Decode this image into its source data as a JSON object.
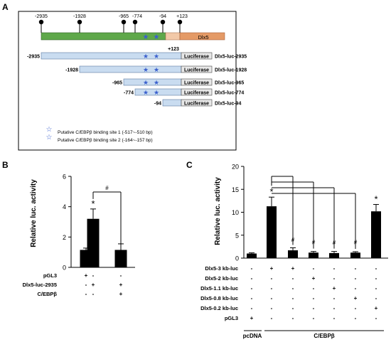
{
  "panel_a": {
    "label": "A",
    "promoter": {
      "positions": [
        "-2935",
        "-1928",
        "-965",
        "-774",
        "-94",
        "+123"
      ],
      "gene_label": "Dlx5",
      "colors": {
        "promoter": "#5fa84a",
        "exon": "#f2c9a8",
        "gene": "#e49a66"
      }
    },
    "tss_label": "+123",
    "constructs": [
      {
        "start": "-2935",
        "luc": "Luciferase",
        "name": "Dlx5-luc-2935",
        "sites": 2
      },
      {
        "start": "-1928",
        "luc": "Luciferase",
        "name": "Dlx5-luc-1928",
        "sites": 2
      },
      {
        "start": "-965",
        "luc": "Luciferase",
        "name": "Dlx5-luc-965",
        "sites": 2
      },
      {
        "start": "-774",
        "luc": "Luciferase",
        "name": "Dlx5-luc-774",
        "sites": 2
      },
      {
        "start": "-94",
        "luc": "Luciferase",
        "name": "Dlx5-luc-94",
        "sites": 0
      }
    ],
    "legend": [
      "Putative C/EBPβ binding site 1 (-517~-510 bp)",
      "Putative C/EBPβ binding site 2 (-164~-157 bp)"
    ],
    "colors": {
      "construct": "#c9dcf0",
      "star": "#3a5fcd"
    }
  },
  "panel_b": {
    "label": "B",
    "row_labels": [
      "pGL3",
      "Dlx5-luc-2935",
      "C/EBPβ"
    ],
    "rows": [
      [
        "+",
        "-",
        "-"
      ],
      [
        "-",
        "+",
        "+"
      ],
      [
        "-",
        "-",
        "+"
      ]
    ],
    "significance": [
      "",
      "*",
      ""
    ],
    "bracket_mark": "#"
  },
  "panel_c": {
    "label": "C",
    "row_labels": [
      "Dlx5-3  kb-luc",
      "Dlx5-2  kb-luc",
      "Dlx5-1.1  kb-luc",
      "Dlx5-0.8  kb-luc",
      "Dlx5-0.2  kb-luc",
      "pGL3"
    ],
    "rows": [
      [
        "-",
        "+",
        "+",
        "-",
        "-",
        "-",
        "-"
      ],
      [
        "-",
        "-",
        "-",
        "+",
        "-",
        "-",
        "-"
      ],
      [
        "-",
        "-",
        "-",
        "-",
        "+",
        "-",
        "-"
      ],
      [
        "-",
        "-",
        "-",
        "-",
        "-",
        "+",
        "-"
      ],
      [
        "-",
        "-",
        "-",
        "-",
        "-",
        "-",
        "+"
      ],
      [
        "+",
        "-",
        "-",
        "-",
        "-",
        "-",
        "-"
      ]
    ],
    "marks": [
      "",
      "*",
      "#",
      "#",
      "#",
      "#",
      "*"
    ],
    "group_labels": [
      "pcDNA",
      "C/EBPβ"
    ]
  },
  "chart_data": [
    {
      "type": "bar",
      "panel": "B",
      "categories": [
        "1",
        "2",
        "3"
      ],
      "values": [
        1.15,
        3.2,
        1.15
      ],
      "errors": [
        0.12,
        0.65,
        0.4
      ],
      "ylabel": "Relative luc. activity",
      "ylim": [
        0,
        6
      ],
      "yticks": [
        "0",
        "2",
        "4",
        "6"
      ],
      "grid": false
    },
    {
      "type": "bar",
      "panel": "C",
      "categories": [
        "1",
        "2",
        "3",
        "4",
        "5",
        "6",
        "7"
      ],
      "values": [
        1.0,
        11.3,
        1.7,
        1.2,
        1.1,
        1.2,
        10.2
      ],
      "errors": [
        0.15,
        2.0,
        0.55,
        0.25,
        0.35,
        0.2,
        1.5
      ],
      "ylabel": "Relative luc. activity",
      "ylim": [
        0,
        20
      ],
      "yticks": [
        "0",
        "5",
        "10",
        "15",
        "20"
      ],
      "grid": false
    }
  ]
}
